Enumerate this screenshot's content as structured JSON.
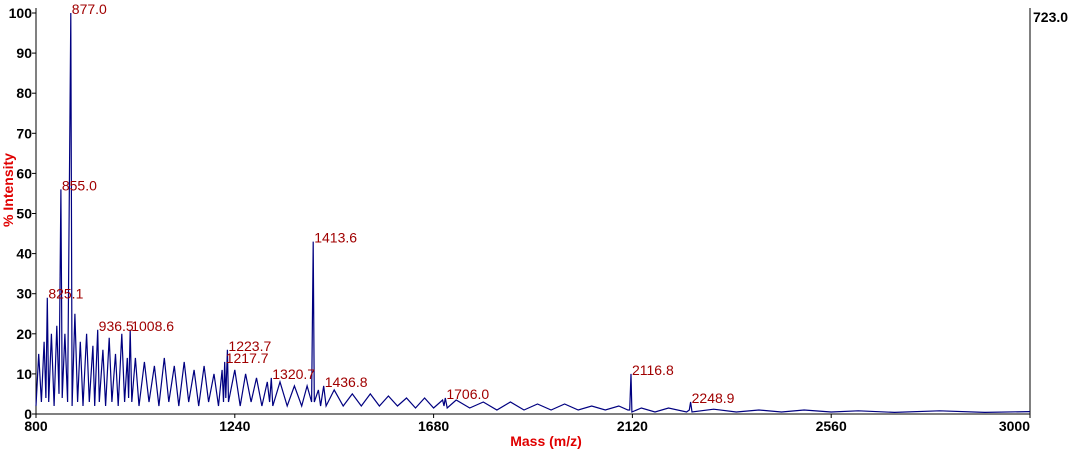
{
  "chart_data": {
    "type": "line",
    "x_label": "Mass (m/z)",
    "y_label": "% Intensity",
    "max_intensity_label": "723.0",
    "color": "#000080",
    "xlim": [
      800,
      3000
    ],
    "xticks": [
      800,
      1240,
      1680,
      2120,
      2560,
      3000
    ],
    "ylim": [
      0,
      100
    ],
    "yticks": [
      0,
      10,
      20,
      30,
      40,
      50,
      60,
      70,
      80,
      90,
      100
    ],
    "x": [
      800,
      806,
      812,
      818,
      822,
      825.1,
      828,
      834,
      840,
      846,
      851,
      855,
      858,
      864,
      870,
      877,
      880,
      886,
      892,
      898,
      904,
      912,
      918,
      926,
      930,
      936.5,
      940,
      948,
      954,
      962,
      968,
      976,
      982,
      990,
      996,
      1002,
      1005,
      1008.6,
      1012,
      1020,
      1028,
      1040,
      1050,
      1062,
      1072,
      1084,
      1094,
      1106,
      1116,
      1128,
      1138,
      1150,
      1160,
      1172,
      1182,
      1194,
      1204,
      1212,
      1215,
      1217.7,
      1220,
      1223.7,
      1226,
      1240,
      1252,
      1264,
      1276,
      1288,
      1300,
      1312,
      1317,
      1320.7,
      1324,
      1340,
      1356,
      1372,
      1388,
      1400,
      1410,
      1413.6,
      1416,
      1425,
      1430,
      1436.8,
      1442,
      1460,
      1480,
      1500,
      1520,
      1540,
      1560,
      1580,
      1600,
      1620,
      1640,
      1660,
      1680,
      1700,
      1703,
      1706,
      1710,
      1730,
      1760,
      1790,
      1820,
      1850,
      1880,
      1910,
      1940,
      1970,
      2000,
      2030,
      2060,
      2090,
      2110,
      2114,
      2116.8,
      2119,
      2140,
      2170,
      2200,
      2240,
      2246,
      2248.9,
      2252,
      2300,
      2350,
      2400,
      2450,
      2500,
      2560,
      2620,
      2700,
      2800,
      2900,
      3000
    ],
    "values": [
      2,
      15,
      3,
      18,
      4,
      29,
      3,
      20,
      2,
      22,
      5,
      56,
      4,
      20,
      3,
      100,
      2,
      25,
      3,
      18,
      2,
      20,
      3,
      17,
      2,
      21,
      3,
      16,
      2,
      19,
      3,
      15,
      2,
      20,
      3,
      14,
      4,
      21,
      3,
      14,
      2,
      13,
      3,
      12,
      2,
      14,
      3,
      12,
      2,
      13,
      3,
      11,
      2,
      12,
      3,
      10,
      2,
      11,
      3,
      13,
      4,
      16,
      3,
      11,
      2,
      10,
      3,
      9,
      2,
      8,
      3,
      9,
      2,
      8,
      2,
      7,
      2,
      7,
      3,
      43,
      3,
      6,
      2,
      7,
      2,
      6,
      2,
      5,
      2,
      5,
      2,
      4.5,
      2,
      4,
      1.5,
      4,
      1.5,
      3.5,
      2,
      4,
      1.5,
      3.5,
      1.5,
      3,
      1,
      3,
      1,
      2.5,
      1,
      2.5,
      1,
      2,
      1,
      2,
      1,
      1,
      10,
      0.5,
      1.5,
      0.5,
      1.5,
      0.5,
      1,
      3,
      0.5,
      1.2,
      0.5,
      1,
      0.5,
      1,
      0.5,
      0.8,
      0.4,
      0.8,
      0.4,
      0.6
    ],
    "annotations": [
      {
        "text": "877.0",
        "x": 877,
        "y": 100
      },
      {
        "text": "855.0",
        "x": 855,
        "y": 56
      },
      {
        "text": "825.1",
        "x": 825.1,
        "y": 29
      },
      {
        "text": "936.5",
        "x": 936.5,
        "y": 21
      },
      {
        "text": "1008.6",
        "x": 1008.6,
        "y": 21
      },
      {
        "text": "1223.7",
        "x": 1223.7,
        "y": 16
      },
      {
        "text": "1217.7",
        "x": 1217.7,
        "y": 13
      },
      {
        "text": "1320.7",
        "x": 1320.7,
        "y": 9
      },
      {
        "text": "1413.6",
        "x": 1413.6,
        "y": 43
      },
      {
        "text": "1436.8",
        "x": 1436.8,
        "y": 7
      },
      {
        "text": "1706.0",
        "x": 1706,
        "y": 4
      },
      {
        "text": "2116.8",
        "x": 2116.8,
        "y": 10
      },
      {
        "text": "2248.9",
        "x": 2248.9,
        "y": 3
      }
    ]
  }
}
